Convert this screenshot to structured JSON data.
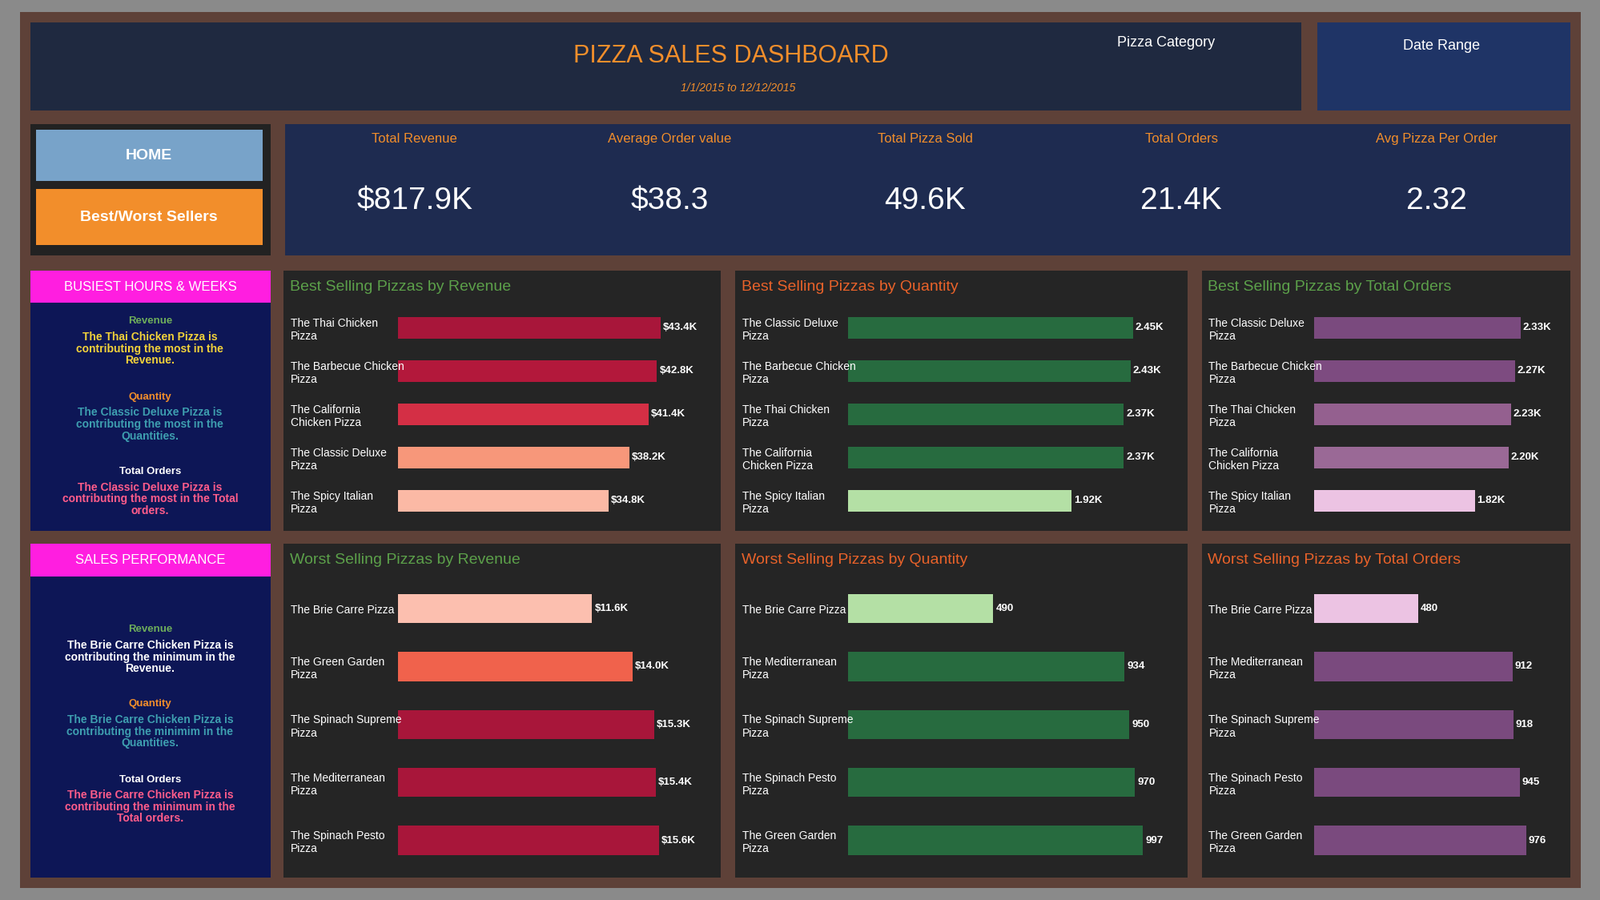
{
  "header": {
    "title": "PIZZA SALES DASHBOARD",
    "subtitle": "1/1/2015 to 12/12/2015",
    "filters": [
      "Pizza Category",
      "Date Range"
    ]
  },
  "navigation": [
    "HOME",
    "Best/Worst Sellers"
  ],
  "kpis": [
    {
      "label": "Total Revenue",
      "value": "$817.9K"
    },
    {
      "label": "Average Order value",
      "value": "$38.3"
    },
    {
      "label": "Total Pizza Sold",
      "value": "49.6K"
    },
    {
      "label": "Total Orders",
      "value": "21.4K"
    },
    {
      "label": "Avg Pizza Per Order",
      "value": "2.32"
    }
  ],
  "insight_panels": [
    {
      "title": "BUSIEST HOURS & WEEKS",
      "items": [
        {
          "heading": "Revenue",
          "text": "The Thai Chicken Pizza is contributing the most in the Revenue."
        },
        {
          "heading": "Quantity",
          "text": "The Classic Deluxe Pizza is contributing the most in the Quantities."
        },
        {
          "heading": "Total Orders",
          "text": "The Classic Deluxe Pizza is contributing the most in the Total orders."
        }
      ]
    },
    {
      "title": "SALES PERFORMANCE",
      "items": [
        {
          "heading": "Revenue",
          "text": "The Brie Carre Chicken Pizza is contributing the minimum in the Revenue."
        },
        {
          "heading": "Quantity",
          "text": "The Brie Carre Chicken Pizza is contributing the minimim in the Quantities."
        },
        {
          "heading": "Total Orders",
          "text": "The Brie Carre Chicken Pizza is contributing the minimum in the Total orders."
        }
      ]
    }
  ],
  "chart_data": [
    {
      "type": "bar",
      "orientation": "horizontal",
      "title": "Best Selling Pizzas by Revenue",
      "categories": [
        "The Thai Chicken Pizza",
        "The Barbecue Chicken Pizza",
        "The California Chicken Pizza",
        "The Classic Deluxe Pizza",
        "The Spicy Italian Pizza"
      ],
      "values": [
        43400,
        42800,
        41400,
        38200,
        34800
      ],
      "value_labels": [
        "$43.4K",
        "$42.8K",
        "$41.4K",
        "$38.2K",
        "$34.8K"
      ],
      "colors": [
        "#a8163a",
        "#b3183b",
        "#d42f45",
        "#f7977a",
        "#fbb9a5"
      ],
      "xlim": [
        0,
        52000
      ],
      "data_labels": true,
      "tick_labels": "y"
    },
    {
      "type": "bar",
      "orientation": "horizontal",
      "title": "Best Selling Pizzas by Quantity",
      "categories": [
        "The Classic Deluxe Pizza",
        "The Barbecue Chicken Pizza",
        "The Thai Chicken Pizza",
        "The California Chicken Pizza",
        "The Spicy Italian Pizza"
      ],
      "values": [
        2450,
        2430,
        2370,
        2370,
        1920
      ],
      "value_labels": [
        "2.45K",
        "2.43K",
        "2.37K",
        "2.37K",
        "1.92K"
      ],
      "colors": [
        "#276b3f",
        "#276b3f",
        "#276b3f",
        "#276b3f",
        "#b4e0a5"
      ],
      "xlim": [
        0,
        2850
      ],
      "data_labels": true,
      "tick_labels": "y"
    },
    {
      "type": "bar",
      "orientation": "horizontal",
      "title": "Best Selling Pizzas by Total Orders",
      "categories": [
        "The Classic Deluxe Pizza",
        "The Barbecue Chicken Pizza",
        "The Thai Chicken Pizza",
        "The California Chicken Pizza",
        "The Spicy Italian Pizza"
      ],
      "values": [
        2330,
        2270,
        2230,
        2200,
        1820
      ],
      "value_labels": [
        "2.33K",
        "2.27K",
        "2.23K",
        "2.20K",
        "1.82K"
      ],
      "colors": [
        "#7a4a7e",
        "#7d4b80",
        "#94608f",
        "#9a6996",
        "#ecc3e3"
      ],
      "xlim": [
        0,
        2800
      ],
      "data_labels": true,
      "tick_labels": "y"
    },
    {
      "type": "bar",
      "orientation": "horizontal",
      "title": "Worst Selling Pizzas by Revenue",
      "categories": [
        "The Brie Carre Pizza",
        "The Green Garden Pizza",
        "The Spinach Supreme Pizza",
        "The Mediterranean Pizza",
        "The Spinach Pesto Pizza"
      ],
      "values": [
        11600,
        14000,
        15300,
        15400,
        15600
      ],
      "value_labels": [
        "$11.6K",
        "$14.0K",
        "$15.3K",
        "$15.4K",
        "$15.6K"
      ],
      "colors": [
        "#fcbfaf",
        "#f0624c",
        "#a8163a",
        "#a8163a",
        "#a8163a"
      ],
      "xlim": [
        0,
        18800
      ],
      "data_labels": true,
      "tick_labels": "y"
    },
    {
      "type": "bar",
      "orientation": "horizontal",
      "title": "Worst Selling Pizzas by Quantity",
      "categories": [
        "The Brie Carre Pizza",
        "The Mediterranean Pizza",
        "The Spinach Supreme Pizza",
        "The Spinach Pesto Pizza",
        "The Green Garden Pizza"
      ],
      "values": [
        490,
        934,
        950,
        970,
        997
      ],
      "colors": [
        "#b4e0a5",
        "#276b3f",
        "#276b3f",
        "#276b3f",
        "#276b3f"
      ],
      "xlim": [
        0,
        1120
      ],
      "data_labels": true,
      "tick_labels": "y"
    },
    {
      "type": "bar",
      "orientation": "horizontal",
      "title": "Worst Selling Pizzas by Total Orders",
      "categories": [
        "The Brie Carre Pizza",
        "The Mediterranean Pizza",
        "The Spinach Supreme Pizza",
        "The Spinach Pesto Pizza",
        "The Green Garden Pizza"
      ],
      "values": [
        480,
        912,
        918,
        945,
        976
      ],
      "colors": [
        "#ecc3e3",
        "#7a4a7e",
        "#7a4a7e",
        "#7a4a7e",
        "#7a4a7e"
      ],
      "xlim": [
        0,
        1140
      ],
      "data_labels": true,
      "tick_labels": "y"
    }
  ]
}
